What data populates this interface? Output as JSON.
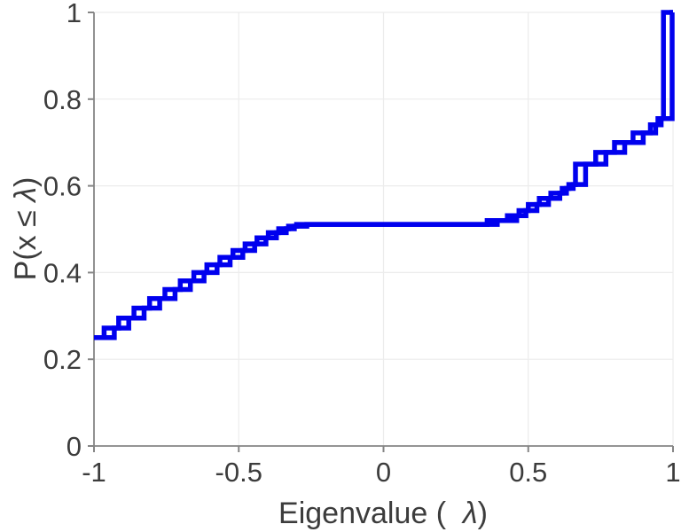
{
  "figure": {
    "background": "#ffffff",
    "description": "Empirical CDF of eigenvalues, two overlapping blue step curves"
  },
  "chart_data": {
    "type": "line",
    "subtype": "step-ecdf",
    "title": "",
    "xlabel": "Eigenvalue (  λ)",
    "ylabel": "P(x ≤ λ)",
    "xlim": [
      -1,
      1
    ],
    "ylim": [
      0,
      1
    ],
    "xticks": {
      "values": [
        -1,
        -0.5,
        0,
        0.5,
        1
      ],
      "labels": [
        "-1",
        "-0.5",
        "0",
        "0.5",
        "1"
      ]
    },
    "yticks": {
      "values": [
        0,
        0.2,
        0.4,
        0.6,
        0.8,
        1
      ],
      "labels": [
        "0",
        "0.2",
        "0.4",
        "0.6",
        "0.8",
        "1"
      ]
    },
    "grid": true,
    "legend": "none",
    "line_color": "#0000ee",
    "line_width": 5.5,
    "grid_color": "#ececec",
    "axis_color": "#858585",
    "tick_color": "#858585",
    "label_color": "#3c3c3c",
    "series": [
      {
        "name": "ecdf-step-line-1",
        "start": [
          -1,
          0.25
        ],
        "end_x": 1,
        "jumps": [
          [
            -0.965,
            0.272
          ],
          [
            -0.915,
            0.295
          ],
          [
            -0.862,
            0.318
          ],
          [
            -0.808,
            0.34
          ],
          [
            -0.755,
            0.361
          ],
          [
            -0.702,
            0.381
          ],
          [
            -0.655,
            0.4
          ],
          [
            -0.61,
            0.418
          ],
          [
            -0.565,
            0.435
          ],
          [
            -0.52,
            0.451
          ],
          [
            -0.478,
            0.466
          ],
          [
            -0.437,
            0.48
          ],
          [
            -0.398,
            0.492
          ],
          [
            -0.362,
            0.501
          ],
          [
            -0.328,
            0.507
          ],
          [
            -0.3,
            0.511
          ],
          [
            0.358,
            0.52
          ],
          [
            0.428,
            0.531
          ],
          [
            0.468,
            0.543
          ],
          [
            0.5,
            0.557
          ],
          [
            0.538,
            0.571
          ],
          [
            0.578,
            0.583
          ],
          [
            0.617,
            0.594
          ],
          [
            0.64,
            0.603
          ],
          [
            0.663,
            0.65
          ],
          [
            0.733,
            0.677
          ],
          [
            0.798,
            0.7
          ],
          [
            0.862,
            0.722
          ],
          [
            0.922,
            0.741
          ],
          [
            0.948,
            0.755
          ],
          [
            0.967,
            1.0
          ]
        ]
      },
      {
        "name": "ecdf-step-line-2",
        "start": [
          -1,
          0.25
        ],
        "end_x": 1,
        "jumps": [
          [
            -0.93,
            0.272
          ],
          [
            -0.88,
            0.295
          ],
          [
            -0.827,
            0.318
          ],
          [
            -0.773,
            0.34
          ],
          [
            -0.72,
            0.361
          ],
          [
            -0.667,
            0.381
          ],
          [
            -0.62,
            0.4
          ],
          [
            -0.575,
            0.418
          ],
          [
            -0.53,
            0.435
          ],
          [
            -0.486,
            0.451
          ],
          [
            -0.445,
            0.466
          ],
          [
            -0.406,
            0.48
          ],
          [
            -0.37,
            0.492
          ],
          [
            -0.336,
            0.501
          ],
          [
            -0.308,
            0.507
          ],
          [
            -0.265,
            0.511
          ],
          [
            0.393,
            0.52
          ],
          [
            0.46,
            0.531
          ],
          [
            0.492,
            0.543
          ],
          [
            0.53,
            0.557
          ],
          [
            0.57,
            0.571
          ],
          [
            0.609,
            0.583
          ],
          [
            0.632,
            0.594
          ],
          [
            0.655,
            0.603
          ],
          [
            0.698,
            0.65
          ],
          [
            0.768,
            0.677
          ],
          [
            0.833,
            0.7
          ],
          [
            0.897,
            0.722
          ],
          [
            0.94,
            0.741
          ],
          [
            0.959,
            0.755
          ],
          [
            0.997,
            1.0
          ]
        ]
      }
    ]
  }
}
